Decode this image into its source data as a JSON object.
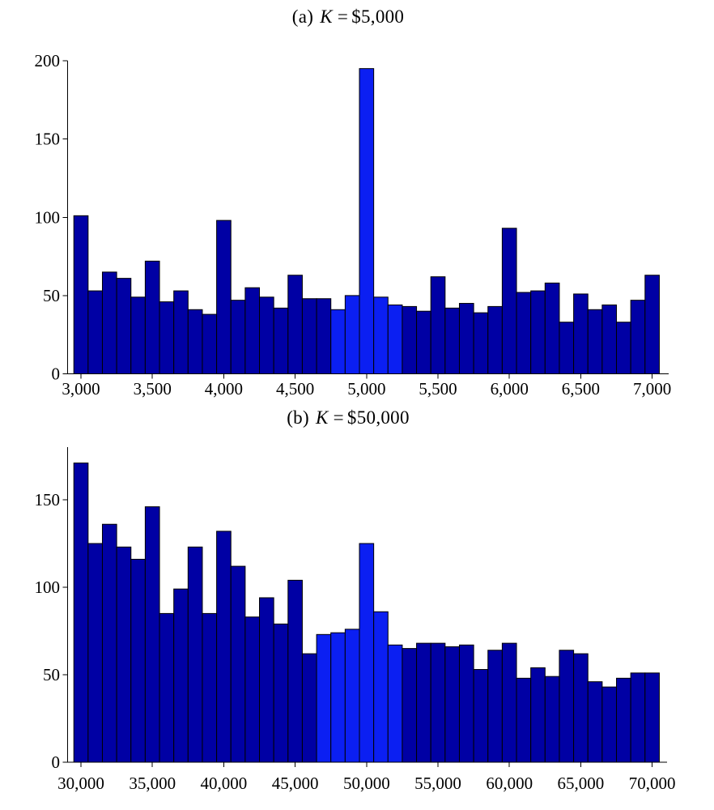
{
  "figure": {
    "background": "#ffffff",
    "description_visible_text_only": true
  },
  "chart_data": [
    {
      "type": "bar",
      "subtype": "histogram",
      "title": "(a) K = $5,000",
      "title_parts": {
        "label": "(a)",
        "variable": "K",
        "eq": "=",
        "value": "$5,000"
      },
      "xlabel": "",
      "ylabel": "",
      "grid": false,
      "bin_width": 100,
      "xlim": [
        2950,
        7120
      ],
      "ylim": [
        0,
        200
      ],
      "bin_centers": [
        3000,
        3100,
        3200,
        3300,
        3400,
        3500,
        3600,
        3700,
        3800,
        3900,
        4000,
        4100,
        4200,
        4300,
        4400,
        4500,
        4600,
        4700,
        4800,
        4900,
        5000,
        5100,
        5200,
        5300,
        5400,
        5500,
        5600,
        5700,
        5800,
        5900,
        6000,
        6100,
        6200,
        6300,
        6400,
        6500,
        6600,
        6700,
        6800,
        6900,
        7000
      ],
      "values": [
        101,
        53,
        65,
        61,
        49,
        72,
        46,
        53,
        41,
        38,
        98,
        47,
        55,
        49,
        42,
        63,
        48,
        48,
        41,
        50,
        195,
        49,
        44,
        43,
        40,
        62,
        42,
        45,
        39,
        43,
        93,
        52,
        53,
        58,
        33,
        51,
        41,
        44,
        33,
        47,
        63
      ],
      "highlight_indices": [
        18,
        19,
        20,
        21,
        22
      ],
      "highlight_range": {
        "from": 4750,
        "to": 5250
      },
      "xticks": [
        {
          "value": 3000,
          "label": "3,000"
        },
        {
          "value": 3500,
          "label": "3,500"
        },
        {
          "value": 4000,
          "label": "4,000"
        },
        {
          "value": 4500,
          "label": "4,500"
        },
        {
          "value": 5000,
          "label": "5,000"
        },
        {
          "value": 5500,
          "label": "5,500"
        },
        {
          "value": 6000,
          "label": "6,000"
        },
        {
          "value": 6500,
          "label": "6,500"
        },
        {
          "value": 7000,
          "label": "7,000"
        }
      ],
      "yticks": [
        {
          "value": 0,
          "label": "0"
        },
        {
          "value": 50,
          "label": "50"
        },
        {
          "value": 100,
          "label": "100"
        },
        {
          "value": 150,
          "label": "150"
        },
        {
          "value": 200,
          "label": "200"
        }
      ],
      "colors": {
        "bar_fill": "#0000A4",
        "bar_highlight": "#0B1FF2",
        "bar_edge": "#000000",
        "axis": "#000000",
        "text": "#000000"
      }
    },
    {
      "type": "bar",
      "subtype": "histogram",
      "title": "(b) K = $50,000",
      "title_parts": {
        "label": "(b)",
        "variable": "K",
        "eq": "=",
        "value": "$50,000"
      },
      "xlabel": "",
      "ylabel": "",
      "grid": false,
      "bin_width": 1000,
      "xlim": [
        29500,
        71200
      ],
      "ylim": [
        0,
        180
      ],
      "bin_centers": [
        30000,
        31000,
        32000,
        33000,
        34000,
        35000,
        36000,
        37000,
        38000,
        39000,
        40000,
        41000,
        42000,
        43000,
        44000,
        45000,
        46000,
        47000,
        48000,
        49000,
        50000,
        51000,
        52000,
        53000,
        54000,
        55000,
        56000,
        57000,
        58000,
        59000,
        60000,
        61000,
        62000,
        63000,
        64000,
        65000,
        66000,
        67000,
        68000,
        69000,
        70000
      ],
      "values": [
        171,
        125,
        136,
        123,
        116,
        146,
        85,
        99,
        123,
        85,
        132,
        112,
        83,
        94,
        79,
        104,
        62,
        73,
        74,
        76,
        125,
        86,
        67,
        65,
        68,
        68,
        66,
        67,
        53,
        64,
        68,
        48,
        54,
        49,
        64,
        62,
        46,
        43,
        48,
        51,
        51
      ],
      "highlight_indices": [
        17,
        18,
        19,
        20,
        21,
        22
      ],
      "highlight_range": {
        "from": 46500,
        "to": 52500
      },
      "xticks": [
        {
          "value": 30000,
          "label": "30,000"
        },
        {
          "value": 35000,
          "label": "35,000"
        },
        {
          "value": 40000,
          "label": "40,000"
        },
        {
          "value": 45000,
          "label": "45,000"
        },
        {
          "value": 50000,
          "label": "50,000"
        },
        {
          "value": 55000,
          "label": "55,000"
        },
        {
          "value": 60000,
          "label": "60,000"
        },
        {
          "value": 65000,
          "label": "65,000"
        },
        {
          "value": 70000,
          "label": "70,000"
        }
      ],
      "yticks": [
        {
          "value": 0,
          "label": "0"
        },
        {
          "value": 50,
          "label": "50"
        },
        {
          "value": 100,
          "label": "100"
        },
        {
          "value": 150,
          "label": "150"
        }
      ],
      "colors": {
        "bar_fill": "#0000A4",
        "bar_highlight": "#0B1FF2",
        "bar_edge": "#000000",
        "axis": "#000000",
        "text": "#000000"
      }
    }
  ]
}
